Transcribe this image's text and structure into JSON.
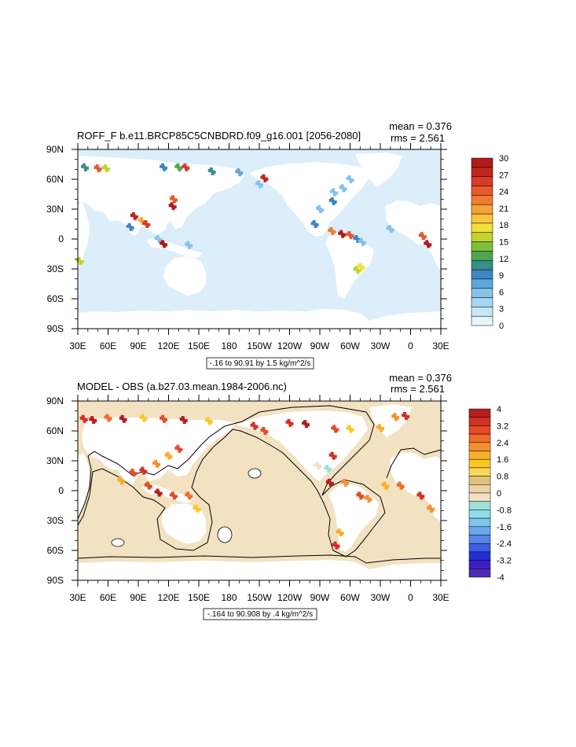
{
  "chart_data": [
    {
      "type": "heatmap",
      "title": "ROFF_F b.e11.BRCP85C5CNBDRD.f09_g16.001 [2056-2080]",
      "mean_label": "mean = 0.376",
      "rms_label": "rms = 2.561",
      "range_label": "-.16 to 90.91 by 1.5 kg/m^2/s",
      "x_ticks": [
        "30E",
        "60E",
        "90E",
        "120E",
        "150E",
        "180",
        "150W",
        "120W",
        "90W",
        "60W",
        "30W",
        "0",
        "30E"
      ],
      "y_ticks": [
        "90N",
        "60N",
        "30N",
        "0",
        "30S",
        "60S",
        "90S"
      ],
      "xlim": [
        30,
        390
      ],
      "ylim": [
        -90,
        90
      ],
      "colorbar": {
        "labels": [
          "0",
          "3",
          "6",
          "9",
          "12",
          "15",
          "18",
          "21",
          "24",
          "27",
          "30"
        ],
        "colors": [
          "#e6f4fd",
          "#c7e6f8",
          "#a6d6f2",
          "#85c3ea",
          "#5fa8dc",
          "#3f86c4",
          "#36908a",
          "#4fa84f",
          "#7ebf3c",
          "#c4d230",
          "#f2e03b",
          "#f9c53c",
          "#f6a23a",
          "#f07c34",
          "#e65a2d",
          "#d93b28",
          "#c4241f",
          "#b01a1a"
        ]
      },
      "hotspots": [
        {
          "lon": 37,
          "lat": 72,
          "value": 10
        },
        {
          "lon": 50,
          "lat": 71,
          "value": 24
        },
        {
          "lon": 58,
          "lat": 71,
          "value": 15
        },
        {
          "lon": 115,
          "lat": 72,
          "value": 9
        },
        {
          "lon": 130,
          "lat": 72,
          "value": 12
        },
        {
          "lon": 137,
          "lat": 72,
          "value": 25
        },
        {
          "lon": 163,
          "lat": 68,
          "value": 10
        },
        {
          "lon": 190,
          "lat": 67,
          "value": 7
        },
        {
          "lon": 215,
          "lat": 61,
          "value": 27
        },
        {
          "lon": 210,
          "lat": 55,
          "value": 6
        },
        {
          "lon": 125,
          "lat": 40,
          "value": 24
        },
        {
          "lon": 124,
          "lat": 33,
          "value": 29
        },
        {
          "lon": 86,
          "lat": 23,
          "value": 27
        },
        {
          "lon": 94,
          "lat": 18,
          "value": 21
        },
        {
          "lon": 98,
          "lat": 15,
          "value": 25
        },
        {
          "lon": 82,
          "lat": 12,
          "value": 9
        },
        {
          "lon": 110,
          "lat": 0,
          "value": 6
        },
        {
          "lon": 115,
          "lat": -5,
          "value": 29
        },
        {
          "lon": 140,
          "lat": -6,
          "value": 6
        },
        {
          "lon": 32,
          "lat": -22,
          "value": 15
        },
        {
          "lon": 270,
          "lat": 30,
          "value": 6
        },
        {
          "lon": 283,
          "lat": 38,
          "value": 9
        },
        {
          "lon": 284,
          "lat": 47,
          "value": 6
        },
        {
          "lon": 293,
          "lat": 51,
          "value": 6
        },
        {
          "lon": 300,
          "lat": 60,
          "value": 6
        },
        {
          "lon": 265,
          "lat": 15,
          "value": 9
        },
        {
          "lon": 282,
          "lat": 8,
          "value": 22
        },
        {
          "lon": 292,
          "lat": 5,
          "value": 29
        },
        {
          "lon": 300,
          "lat": 4,
          "value": 24
        },
        {
          "lon": 307,
          "lat": 0,
          "value": 9
        },
        {
          "lon": 312,
          "lat": -3,
          "value": 6
        },
        {
          "lon": 311,
          "lat": -28,
          "value": 18
        },
        {
          "lon": 307,
          "lat": -31,
          "value": 15
        },
        {
          "lon": 340,
          "lat": 10,
          "value": 6
        },
        {
          "lon": 372,
          "lat": 3,
          "value": 24
        },
        {
          "lon": 377,
          "lat": -5,
          "value": 29
        }
      ]
    },
    {
      "type": "heatmap",
      "title": "MODEL - OBS (a.b27.03.mean.1984-2006.nc)",
      "mean_label": "mean = 0.376",
      "rms_label": "rms = 2.561",
      "range_label": "-.164 to 90.908 by .4 kg/m^2/s",
      "x_ticks": [
        "30E",
        "60E",
        "90E",
        "120E",
        "150E",
        "180",
        "150W",
        "120W",
        "90W",
        "60W",
        "30W",
        "0",
        "30E"
      ],
      "y_ticks": [
        "90N",
        "60N",
        "30N",
        "0",
        "30S",
        "60S",
        "90S"
      ],
      "xlim": [
        30,
        390
      ],
      "ylim": [
        -90,
        90
      ],
      "colorbar": {
        "labels": [
          "4",
          "3.2",
          "2.4",
          "1.6",
          "0.8",
          "0",
          "-0.8",
          "-1.6",
          "-2.4",
          "-3.2",
          "-4"
        ],
        "colors": [
          "#b51f1f",
          "#d23125",
          "#e54b25",
          "#f06d2b",
          "#f6902f",
          "#f9ae2a",
          "#fbc821",
          "#f7d85a",
          "#e3c07c",
          "#ecd3a6",
          "#f2e2c2",
          "#9be3d6",
          "#8fdcea",
          "#7dc6ee",
          "#6aa8ec",
          "#5585ea",
          "#3b5ee0",
          "#2430d6",
          "#3a20c4",
          "#4d2bb2"
        ]
      },
      "hotspots": [
        {
          "lon": 36,
          "lat": 72,
          "value": 3.4
        },
        {
          "lon": 45,
          "lat": 71,
          "value": 3.8
        },
        {
          "lon": 60,
          "lat": 73,
          "value": 2.6
        },
        {
          "lon": 75,
          "lat": 72,
          "value": 3.8
        },
        {
          "lon": 95,
          "lat": 73,
          "value": 1.2
        },
        {
          "lon": 115,
          "lat": 72,
          "value": 3.0
        },
        {
          "lon": 135,
          "lat": 71,
          "value": 3.6
        },
        {
          "lon": 160,
          "lat": 70,
          "value": 1.4
        },
        {
          "lon": 205,
          "lat": 65,
          "value": 3.4
        },
        {
          "lon": 215,
          "lat": 60,
          "value": 3.0
        },
        {
          "lon": 240,
          "lat": 68,
          "value": 3.2
        },
        {
          "lon": 256,
          "lat": 67,
          "value": 3.6
        },
        {
          "lon": 285,
          "lat": 62,
          "value": 3.0
        },
        {
          "lon": 300,
          "lat": 62,
          "value": 1.4
        },
        {
          "lon": 330,
          "lat": 63,
          "value": 1.8
        },
        {
          "lon": 345,
          "lat": 74,
          "value": 2.0
        },
        {
          "lon": 355,
          "lat": 75,
          "value": 3.4
        },
        {
          "lon": 120,
          "lat": 35,
          "value": 1.8
        },
        {
          "lon": 130,
          "lat": 42,
          "value": 3.0
        },
        {
          "lon": 108,
          "lat": 27,
          "value": 2.2
        },
        {
          "lon": 95,
          "lat": 20,
          "value": 3.2
        },
        {
          "lon": 85,
          "lat": 18,
          "value": 3.0
        },
        {
          "lon": 73,
          "lat": 10,
          "value": 1.6
        },
        {
          "lon": 100,
          "lat": 5,
          "value": 2.8
        },
        {
          "lon": 110,
          "lat": -2,
          "value": 3.6
        },
        {
          "lon": 125,
          "lat": -5,
          "value": 3.0
        },
        {
          "lon": 140,
          "lat": -5,
          "value": 2.4
        },
        {
          "lon": 148,
          "lat": -18,
          "value": 1.2
        },
        {
          "lon": 268,
          "lat": 25,
          "value": -0.4
        },
        {
          "lon": 278,
          "lat": 22,
          "value": -0.6
        },
        {
          "lon": 283,
          "lat": 35,
          "value": 3.2
        },
        {
          "lon": 280,
          "lat": 8,
          "value": 3.6
        },
        {
          "lon": 295,
          "lat": 8,
          "value": 2.0
        },
        {
          "lon": 310,
          "lat": -5,
          "value": 3.0
        },
        {
          "lon": 318,
          "lat": -8,
          "value": 2.2
        },
        {
          "lon": 290,
          "lat": -42,
          "value": 1.8
        },
        {
          "lon": 286,
          "lat": -55,
          "value": 3.4
        },
        {
          "lon": 335,
          "lat": 5,
          "value": 1.8
        },
        {
          "lon": 350,
          "lat": 5,
          "value": 2.4
        },
        {
          "lon": 370,
          "lat": -5,
          "value": 3.2
        },
        {
          "lon": 380,
          "lat": -18,
          "value": 2.0
        }
      ]
    }
  ]
}
